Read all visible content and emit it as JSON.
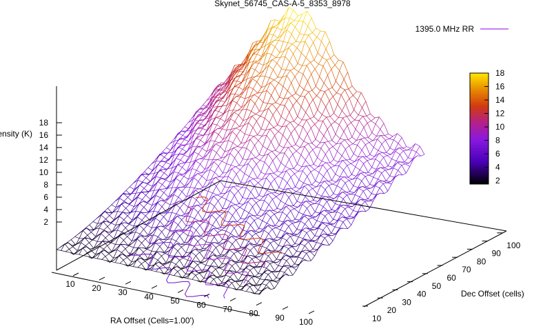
{
  "chart_data": {
    "type": "surface",
    "title": "Skynet_56745_CAS-A-5_8353_8978",
    "legend": {
      "label": "1395.0 MHz RR",
      "placement": "top-right",
      "color": "#8800ee"
    },
    "xlabel": "RA Offset (Cells=1.00')",
    "ylabel": "Dec Offset (cells)",
    "zlabel": "Intensity (K)",
    "x_ticks": [
      "10",
      "20",
      "30",
      "40",
      "50",
      "60",
      "70",
      "80",
      "90",
      "100"
    ],
    "y_ticks": [
      "10",
      "20",
      "30",
      "40",
      "50",
      "60",
      "70",
      "80",
      "90",
      "100"
    ],
    "z_ticks": [
      "2",
      "4",
      "6",
      "8",
      "10",
      "12",
      "14",
      "16",
      "18"
    ],
    "xlim": [
      1,
      100
    ],
    "ylim": [
      1,
      100
    ],
    "zlim": [
      0,
      18
    ],
    "colorbar": {
      "ticks": [
        "2",
        "4",
        "6",
        "8",
        "10",
        "12",
        "14",
        "16",
        "18"
      ],
      "range": [
        1.5,
        18
      ],
      "palette": "gnuplot"
    },
    "surface_samples": [
      {
        "ra": 5,
        "dec": 100,
        "intensity": 10.0
      },
      {
        "ra": 20,
        "dec": 100,
        "intensity": 12.5
      },
      {
        "ra": 30,
        "dec": 100,
        "intensity": 16.0
      },
      {
        "ra": 40,
        "dec": 100,
        "intensity": 18.0
      },
      {
        "ra": 50,
        "dec": 100,
        "intensity": 14.0
      },
      {
        "ra": 70,
        "dec": 100,
        "intensity": 9.0
      },
      {
        "ra": 100,
        "dec": 100,
        "intensity": 7.0
      },
      {
        "ra": 5,
        "dec": 1,
        "intensity": 3.0
      },
      {
        "ra": 100,
        "dec": 1,
        "intensity": 2.0
      }
    ]
  }
}
